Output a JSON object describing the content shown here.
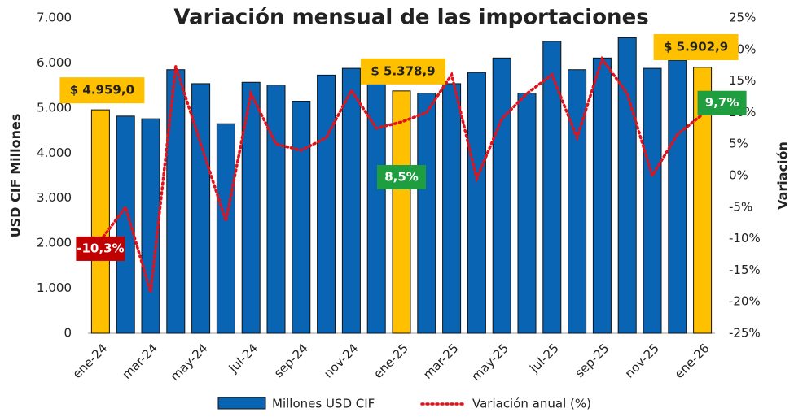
{
  "chart_data": {
    "type": "bar_line",
    "title": "Variación mensual de las importaciones",
    "y_label": "USD CIF Millones",
    "y2_label": "Variación",
    "categories": [
      "ene-24",
      null,
      "mar-24",
      null,
      "may-24",
      null,
      "jul-24",
      null,
      "sep-24",
      null,
      "nov-24",
      null,
      "ene-25",
      null,
      "mar-25",
      null,
      "may-25",
      null,
      "jul-25",
      null,
      "sep-25",
      null,
      "nov-25",
      null,
      "ene-26"
    ],
    "series": [
      {
        "name": "Millones USD CIF",
        "color": "#0a64b4",
        "highlight_color": "#ffc000",
        "highlight": [
          0,
          12,
          24
        ],
        "values": [
          4959.0,
          4820,
          4760,
          5850,
          5540,
          4650,
          5570,
          5510,
          5150,
          5730,
          5880,
          5650,
          5378.9,
          5330,
          5540,
          5790,
          6110,
          5330,
          6480,
          5850,
          6110,
          6560,
          5880,
          6060,
          5902.9
        ],
        "value_labels": [
          "$ 4.959,0",
          null,
          null,
          null,
          null,
          null,
          null,
          null,
          null,
          null,
          null,
          null,
          "$ 5.378,9",
          null,
          null,
          null,
          null,
          null,
          null,
          null,
          null,
          null,
          null,
          null,
          "$ 5.902,9"
        ]
      },
      {
        "name": "Variación anual (%)",
        "color": "#e0121c",
        "axis": "y2",
        "values": [
          -10.3,
          -5,
          -18.5,
          17.3,
          5,
          -7.2,
          13,
          5,
          4,
          6,
          13.5,
          7.5,
          8.5,
          10,
          16,
          -0.5,
          9,
          13,
          16,
          6,
          18.5,
          13,
          0,
          6.5,
          9.7
        ],
        "value_labels": [
          "-10,3%",
          null,
          null,
          null,
          null,
          null,
          null,
          null,
          null,
          null,
          null,
          null,
          "8,5%",
          null,
          null,
          null,
          null,
          null,
          null,
          null,
          null,
          null,
          null,
          null,
          "9,7%"
        ]
      }
    ],
    "ylim": [
      0,
      7000
    ],
    "yticks": [
      0,
      {
        "value": 1000,
        "label": "1.000"
      },
      {
        "value": 2000,
        "label": "2.000"
      },
      {
        "value": 3000,
        "label": "3.000"
      },
      {
        "value": 4000,
        "label": "4.000"
      },
      {
        "value": 5000,
        "label": "5.000"
      },
      {
        "value": 6000,
        "label": "6.000"
      },
      {
        "value": 7000,
        "label": "7.000"
      }
    ],
    "y2lim": [
      -25,
      25
    ],
    "y2ticks": [
      {
        "value": -25,
        "label": "-25%"
      },
      {
        "value": -20,
        "label": "-20%"
      },
      {
        "value": -15,
        "label": "-15%"
      },
      {
        "value": -10,
        "label": "-10%"
      },
      {
        "value": -5,
        "label": "-5%"
      },
      {
        "value": 0,
        "label": "0%"
      },
      {
        "value": 5,
        "label": "5%"
      },
      {
        "value": 10,
        "label": "10%"
      },
      {
        "value": 15,
        "label": "15%"
      },
      {
        "value": 20,
        "label": "20%"
      },
      {
        "value": 25,
        "label": "25%"
      }
    ],
    "legend": "bottom"
  }
}
